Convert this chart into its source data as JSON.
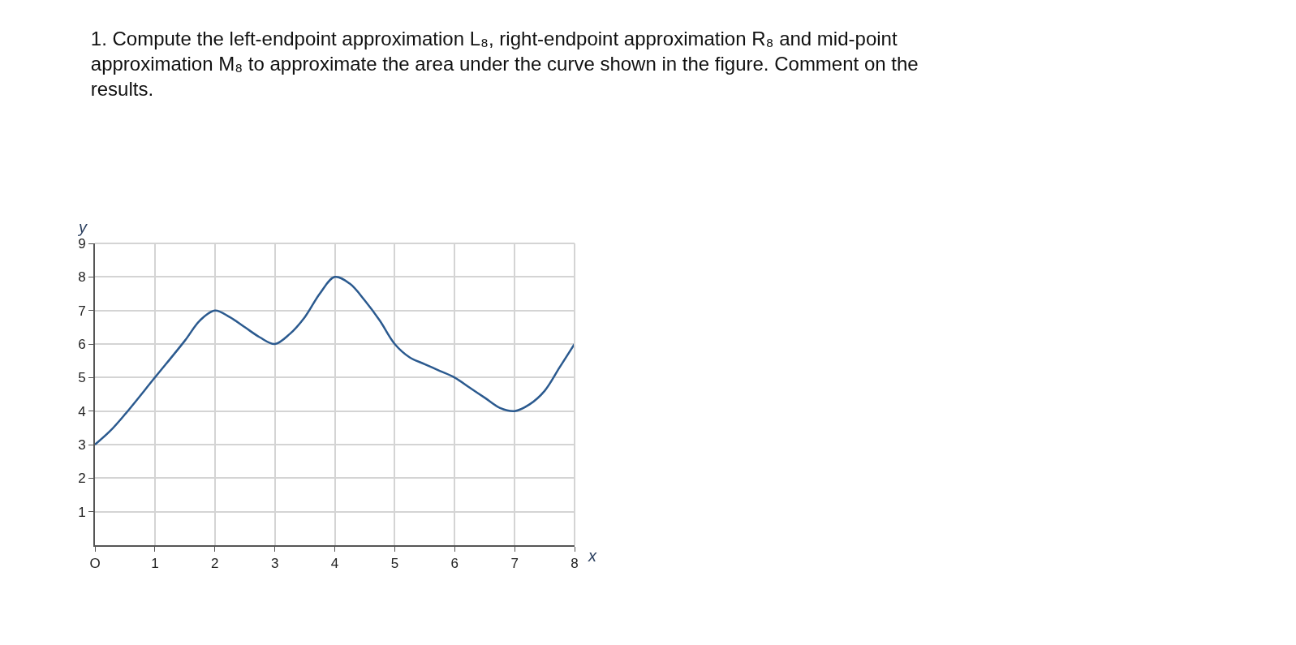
{
  "chart_data": {
    "type": "line",
    "title": "1. Compute the left-endpoint approximation L₈, right-endpoint approximation R₈ and mid-point approximation M₈ to approximate the area under the curve shown in the figure. Comment on the results.",
    "xlabel": "x",
    "ylabel": "y",
    "x": [
      0,
      0.25,
      0.5,
      1,
      1.5,
      1.75,
      2,
      2.25,
      2.5,
      2.75,
      3,
      3.25,
      3.5,
      3.75,
      4,
      4.25,
      4.5,
      4.75,
      5,
      5.25,
      5.5,
      5.75,
      6,
      6.25,
      6.5,
      6.75,
      7,
      7.25,
      7.5,
      7.75,
      8
    ],
    "series": [
      {
        "color": "#2b5a8f",
        "values": [
          3,
          3.4,
          3.9,
          5,
          6.1,
          6.7,
          7,
          6.8,
          6.5,
          6.2,
          6,
          6.3,
          6.8,
          7.5,
          8,
          7.8,
          7.3,
          6.7,
          6,
          5.6,
          5.4,
          5.2,
          5,
          4.7,
          4.4,
          4.1,
          4,
          4.2,
          4.6,
          5.3,
          6
        ]
      }
    ],
    "xlim": [
      0,
      8
    ],
    "ylim": [
      0,
      9
    ],
    "xticks": [
      {
        "value": 0,
        "label": "O"
      },
      1,
      2,
      3,
      4,
      5,
      6,
      7,
      8
    ],
    "yticks": [
      1,
      2,
      3,
      4,
      5,
      6,
      7,
      8,
      9
    ],
    "grid": true,
    "legend": false,
    "marker": "none",
    "line_style": "solid"
  }
}
